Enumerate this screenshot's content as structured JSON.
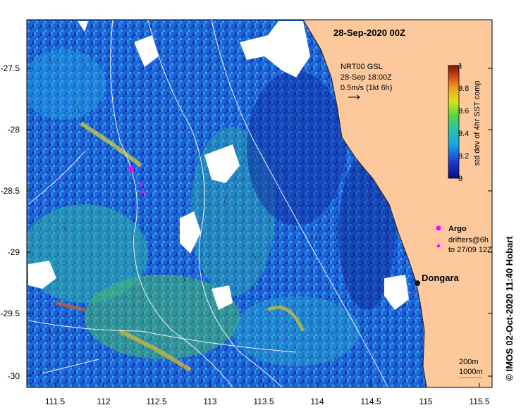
{
  "map": {
    "title": "28-Sep-2020 00Z",
    "product_lines": [
      "NRT00 GSL",
      "28-Sep 18:00Z",
      "0.5m/s (1kt 6h)"
    ],
    "place_label": "Dongara",
    "legend": {
      "argo_label": "Argo",
      "drifters_lines": [
        "drifters@6h",
        "to 27/09 12Z"
      ],
      "argo_color": "#ff00ff"
    },
    "contours": {
      "label_200": "200m",
      "label_1000": "1000m"
    },
    "credit": "© IMOS 02-Oct-2020 11:40 Hobart",
    "colors": {
      "land": "#fcc89c",
      "sea_base": "#1b5bd6",
      "no_data": "#ffffff"
    }
  },
  "colorbar": {
    "title": "std dev of 4hr SST comp",
    "ticks": [
      "0",
      "0.2",
      "0.4",
      "0.6",
      "0.8",
      "1"
    ],
    "range": [
      0,
      1
    ]
  },
  "axes": {
    "x_ticks": [
      "111.5",
      "112",
      "112.5",
      "113",
      "113.5",
      "114",
      "114.5",
      "115",
      "115.5"
    ],
    "y_ticks": [
      "-27.5",
      "-28",
      "-28.5",
      "-29",
      "-29.5",
      "-30"
    ]
  }
}
